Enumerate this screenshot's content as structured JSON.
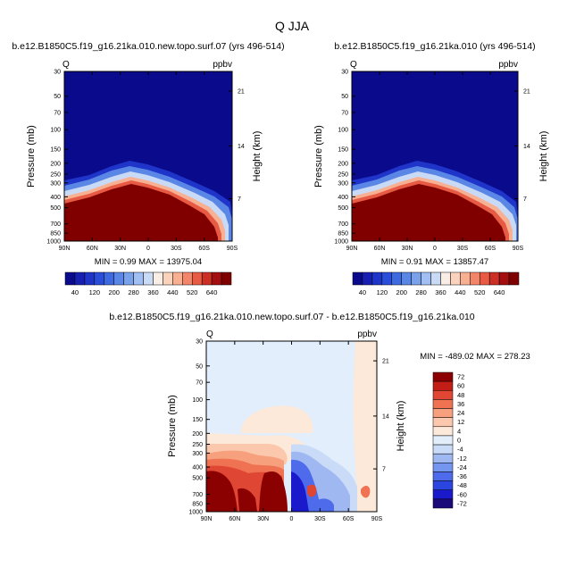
{
  "figure": {
    "title": "Q JJA"
  },
  "palettes": {
    "abs": [
      "#0a0a8c",
      "#1720b0",
      "#1f34c8",
      "#2b4ed8",
      "#3d6ae0",
      "#5a86e6",
      "#7aa2ec",
      "#a1bff2",
      "#c9daf6",
      "#f8eee6",
      "#fbd3bd",
      "#f8b093",
      "#f3866a",
      "#e75a43",
      "#cc2f24",
      "#a30f10",
      "#800000"
    ],
    "diff": [
      "#1a0a7a",
      "#1a1acc",
      "#2b45e0",
      "#4d6bea",
      "#7596ee",
      "#9fb8f2",
      "#c9dbf7",
      "#e2eefb",
      "#fde9d9",
      "#fcc8ad",
      "#f7a07d",
      "#ef7252",
      "#df4633",
      "#c21e16",
      "#8b0000"
    ]
  },
  "chart_data": [
    {
      "type": "heatmap",
      "title": "b.e12.B1850C5.f19_g16.21ka.010.new.topo.surf.07 (yrs 496-514)",
      "left_label": "Q",
      "right_label": "ppbv",
      "xlabel": "",
      "ylabel": "Pressure (mb)",
      "ylabel_right": "Height (km)",
      "x_ticks": [
        "90N",
        "60N",
        "30N",
        "0",
        "30S",
        "60S",
        "90S"
      ],
      "x_values": [
        90,
        60,
        30,
        0,
        -30,
        -60,
        -90
      ],
      "xlim": [
        90,
        -90
      ],
      "y_scale": "log",
      "y_ticks": [
        30,
        50,
        70,
        100,
        150,
        200,
        250,
        300,
        400,
        500,
        700,
        850,
        1000
      ],
      "ylim": [
        1000,
        30
      ],
      "right_ticks": [
        {
          "label": "21",
          "pressure": 45
        },
        {
          "label": "14",
          "pressure": 140
        },
        {
          "label": "7",
          "pressure": 415
        }
      ],
      "min_max": "MIN =   0.99  MAX = 13975.04",
      "colorbar_labels": [
        "40",
        "120",
        "200",
        "280",
        "360",
        "440",
        "520",
        "640"
      ]
    },
    {
      "type": "heatmap",
      "title": "b.e12.B1850C5.f19_g16.21ka.010 (yrs 496-514)",
      "left_label": "Q",
      "right_label": "ppbv",
      "xlabel": "",
      "ylabel": "Pressure (mb)",
      "ylabel_right": "Height (km)",
      "x_ticks": [
        "90N",
        "60N",
        "30N",
        "0",
        "30S",
        "60S",
        "90S"
      ],
      "x_values": [
        90,
        60,
        30,
        0,
        -30,
        -60,
        -90
      ],
      "xlim": [
        90,
        -90
      ],
      "y_scale": "log",
      "y_ticks": [
        30,
        50,
        70,
        100,
        150,
        200,
        250,
        300,
        400,
        500,
        700,
        850,
        1000
      ],
      "ylim": [
        1000,
        30
      ],
      "right_ticks": [
        {
          "label": "21",
          "pressure": 45
        },
        {
          "label": "14",
          "pressure": 140
        },
        {
          "label": "7",
          "pressure": 415
        }
      ],
      "min_max": "MIN =   0.91  MAX = 13857.47",
      "colorbar_labels": [
        "40",
        "120",
        "200",
        "280",
        "360",
        "440",
        "520",
        "640"
      ]
    },
    {
      "type": "heatmap",
      "title": "b.e12.B1850C5.f19_g16.21ka.010.new.topo.surf.07 - b.e12.B1850C5.f19_g16.21ka.010",
      "left_label": "Q",
      "right_label": "ppbv",
      "xlabel": "",
      "ylabel": "Pressure (mb)",
      "ylabel_right": "Height (km)",
      "x_ticks": [
        "90N",
        "60N",
        "30N",
        "0",
        "30S",
        "60S",
        "90S"
      ],
      "x_values": [
        90,
        60,
        30,
        0,
        -30,
        -60,
        -90
      ],
      "xlim": [
        90,
        -90
      ],
      "y_scale": "log",
      "y_ticks": [
        30,
        50,
        70,
        100,
        150,
        200,
        250,
        300,
        400,
        500,
        700,
        850,
        1000
      ],
      "ylim": [
        1000,
        30
      ],
      "right_ticks": [
        {
          "label": "21",
          "pressure": 45
        },
        {
          "label": "14",
          "pressure": 140
        },
        {
          "label": "7",
          "pressure": 415
        }
      ],
      "min_max": "MIN = -489.02  MAX = 278.23",
      "colorbar_labels": [
        "72",
        "60",
        "48",
        "36",
        "24",
        "12",
        "4",
        "0",
        "-4",
        "-12",
        "-24",
        "-36",
        "-48",
        "-60",
        "-72"
      ]
    }
  ]
}
